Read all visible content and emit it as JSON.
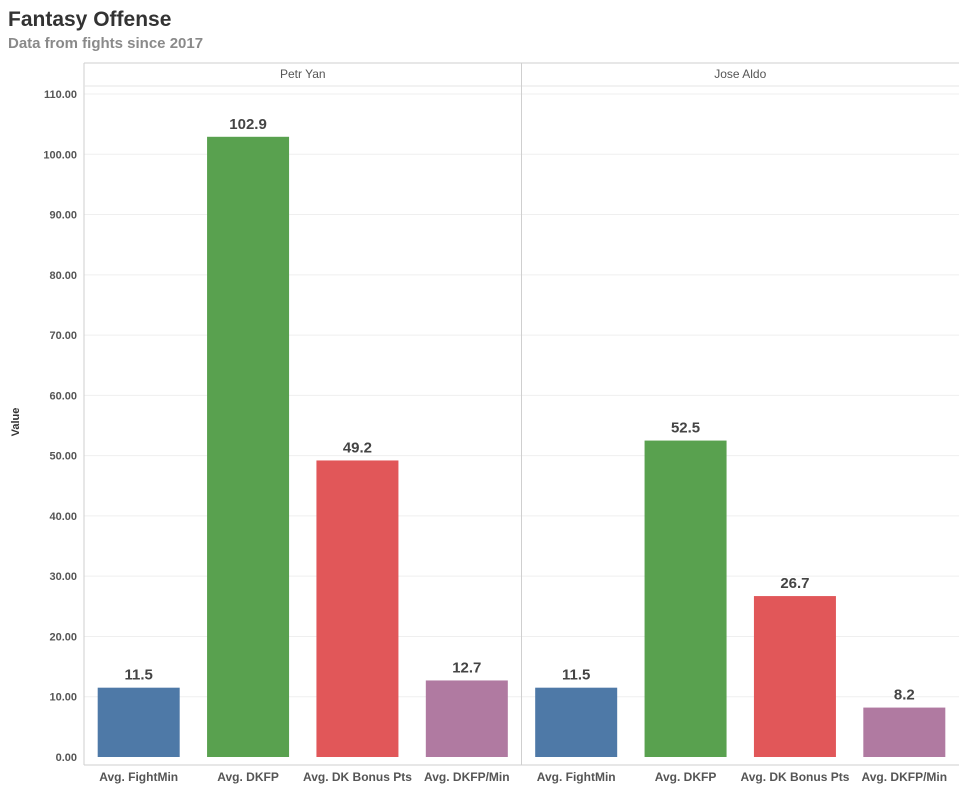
{
  "chart_data": {
    "type": "bar",
    "title": "Fantasy Offense",
    "subtitle": "Data from fights since 2017",
    "ylabel": "Value",
    "xlabel": "",
    "ylim": [
      0,
      110
    ],
    "yticks": [
      "0.00",
      "10.00",
      "20.00",
      "30.00",
      "40.00",
      "50.00",
      "60.00",
      "70.00",
      "80.00",
      "90.00",
      "100.00",
      "110.00"
    ],
    "grid": true,
    "categories": [
      "Avg. FightMin",
      "Avg. DKFP",
      "Avg. DK Bonus Pts",
      "Avg. DKFP/Min"
    ],
    "colors": [
      "#4e79a7",
      "#59a14f",
      "#e15759",
      "#b07aa1"
    ],
    "facets": [
      {
        "name": "Petr Yan",
        "values": [
          11.5,
          102.9,
          49.2,
          12.7
        ],
        "labels": [
          "11.5",
          "102.9",
          "49.2",
          "12.7"
        ]
      },
      {
        "name": "Jose Aldo",
        "values": [
          11.5,
          52.5,
          26.7,
          8.2
        ],
        "labels": [
          "11.5",
          "52.5",
          "26.7",
          "8.2"
        ]
      }
    ]
  }
}
